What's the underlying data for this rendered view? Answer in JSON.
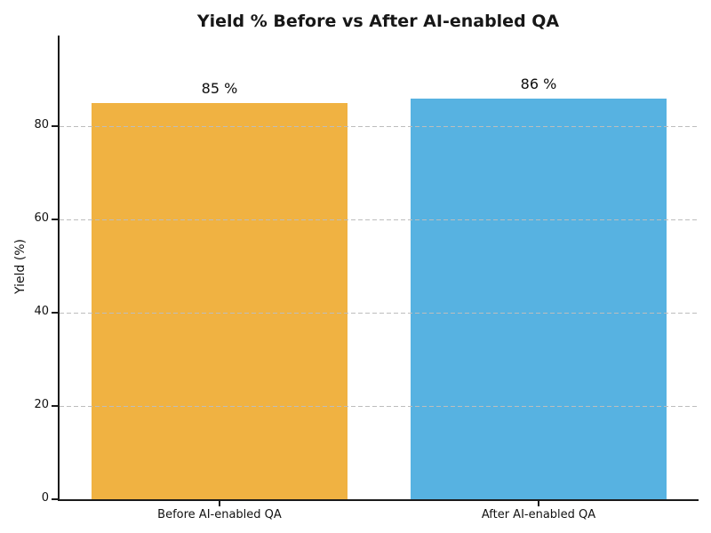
{
  "chart_data": {
    "type": "bar",
    "title": "Yield % Before vs After AI-enabled QA",
    "categories": [
      "Before AI-enabled QA",
      "After AI-enabled QA"
    ],
    "values": [
      85,
      86
    ],
    "value_labels": [
      "85 %",
      "86 %"
    ],
    "bar_colors": [
      "#F0B242",
      "#57B2E1"
    ],
    "xlabel": "",
    "ylabel": "Yield (%)",
    "ylim": [
      0,
      99.5
    ],
    "yticks": [
      0,
      20,
      40,
      60,
      80
    ],
    "grid": "horizontal-dashed",
    "grid_color": "#bdbdbd",
    "legend_position": "none",
    "spine_color": "#1a1a1a",
    "title_color": "#171717"
  }
}
